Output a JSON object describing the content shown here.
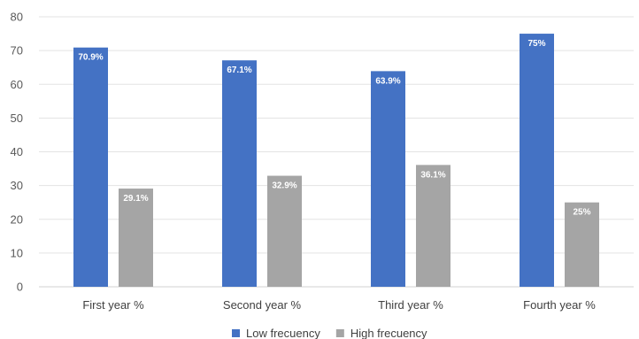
{
  "chart_data": {
    "type": "bar",
    "categories": [
      "First year %",
      "Second year %",
      "Third year %",
      "Fourth year %"
    ],
    "series": [
      {
        "name": "Low frecuency",
        "values": [
          70.9,
          67.1,
          63.9,
          75
        ],
        "labels": [
          "70.9%",
          "67.1%",
          "63.9%",
          "75%"
        ],
        "color": "#4472c4"
      },
      {
        "name": "High frecuency",
        "values": [
          29.1,
          32.9,
          36.1,
          25
        ],
        "labels": [
          "29.1%",
          "32.9%",
          "36.1%",
          "25%"
        ],
        "color": "#a5a5a5"
      }
    ],
    "title": "",
    "xlabel": "",
    "ylabel": "",
    "ylim": [
      0,
      80
    ],
    "yticks": [
      "0",
      "10",
      "20",
      "30",
      "40",
      "50",
      "60",
      "70",
      "80"
    ],
    "grid": true,
    "legend_position": "bottom"
  }
}
